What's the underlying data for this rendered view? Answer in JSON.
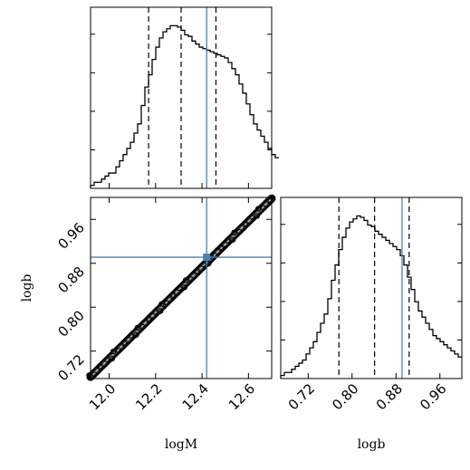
{
  "chart_data": [
    {
      "type": "histogram",
      "panel": "top-left",
      "variable": "logM",
      "xlim": [
        11.92,
        12.7
      ],
      "ylim": [
        0,
        1.18
      ],
      "bins_start": 11.92,
      "bin_width": 0.0156,
      "counts": [
        0.02,
        0.04,
        0.04,
        0.06,
        0.08,
        0.1,
        0.1,
        0.14,
        0.18,
        0.22,
        0.26,
        0.3,
        0.36,
        0.42,
        0.54,
        0.66,
        0.74,
        0.84,
        0.92,
        0.98,
        1.02,
        1.04,
        1.06,
        1.06,
        1.05,
        1.03,
        1.0,
        0.99,
        0.96,
        0.94,
        0.92,
        0.91,
        0.9,
        0.89,
        0.88,
        0.87,
        0.86,
        0.85,
        0.82,
        0.78,
        0.74,
        0.68,
        0.62,
        0.55,
        0.48,
        0.42,
        0.38,
        0.34,
        0.3,
        0.26,
        0.22,
        0.2
      ],
      "quantiles": [
        12.17,
        12.31,
        12.46
      ],
      "truth": 12.42
    },
    {
      "type": "scatter-density",
      "panel": "bottom-left",
      "xvar": "logM",
      "yvar": "logb",
      "xlim": [
        11.92,
        12.7
      ],
      "ylim": [
        0.67,
        1.0
      ],
      "xticks": [
        "12.0",
        "12.2",
        "12.4",
        "12.6"
      ],
      "xtick_values": [
        12.0,
        12.2,
        12.4,
        12.6
      ],
      "yticks": [
        "0.72",
        "0.80",
        "0.88",
        "0.96"
      ],
      "ytick_values": [
        0.72,
        0.8,
        0.88,
        0.96
      ],
      "trend_start": [
        11.92,
        0.673
      ],
      "trend_end": [
        12.7,
        0.998
      ],
      "truth": [
        12.42,
        0.891
      ],
      "xlabel": "logM",
      "ylabel": "logb"
    },
    {
      "type": "histogram",
      "panel": "bottom-right",
      "variable": "logb",
      "xlim": [
        0.67,
        1.0
      ],
      "ylim": [
        0,
        1.18
      ],
      "bins_start": 0.67,
      "bin_width": 0.0066,
      "counts": [
        0.02,
        0.04,
        0.04,
        0.06,
        0.08,
        0.1,
        0.12,
        0.16,
        0.2,
        0.24,
        0.3,
        0.36,
        0.42,
        0.52,
        0.64,
        0.74,
        0.84,
        0.92,
        0.98,
        1.02,
        1.04,
        1.06,
        1.05,
        1.03,
        1.0,
        0.99,
        0.96,
        0.94,
        0.92,
        0.9,
        0.88,
        0.86,
        0.84,
        0.8,
        0.74,
        0.66,
        0.58,
        0.5,
        0.44,
        0.4,
        0.36,
        0.32,
        0.28,
        0.26,
        0.24,
        0.22,
        0.2,
        0.18,
        0.16,
        0.14
      ],
      "quantiles": [
        0.776,
        0.841,
        0.904
      ],
      "truth": 0.891,
      "xticks": [
        "0.72",
        "0.80",
        "0.88",
        "0.96"
      ],
      "xtick_values": [
        0.72,
        0.8,
        0.88,
        0.96
      ],
      "xlabel": "logb"
    }
  ],
  "colors": {
    "truth": "#4682b4",
    "ink": "#000000"
  }
}
